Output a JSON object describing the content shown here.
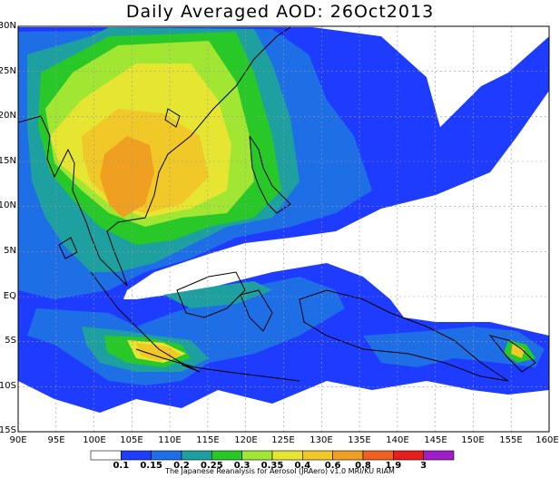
{
  "title": "Daily Averaged AOD: 26Oct2013",
  "map": {
    "lat_labels": [
      "30N",
      "25N",
      "20N",
      "15N",
      "10N",
      "5N",
      "EQ",
      "5S",
      "10S",
      "15S"
    ],
    "lon_labels": [
      "90E",
      "95E",
      "100E",
      "105E",
      "110E",
      "115E",
      "120E",
      "125E",
      "130E",
      "135E",
      "140E",
      "145E",
      "150E",
      "155E",
      "160E"
    ],
    "extent": {
      "lon": [
        90,
        160
      ],
      "lat": [
        -15,
        30
      ]
    }
  },
  "colorbar": {
    "colors": [
      "#ffffff",
      "#1e3cff",
      "#1e6ee6",
      "#1ea0a0",
      "#28c828",
      "#a0e632",
      "#e6e632",
      "#f0c828",
      "#f0a020",
      "#f06020",
      "#e61e1e",
      "#a01ec8"
    ],
    "tick_labels": [
      "0.1",
      "0.15",
      "0.2",
      "0.25",
      "0.3",
      "0.35",
      "0.4",
      "0.6",
      "0.8",
      "1.9",
      "3"
    ]
  },
  "credit": "The Japanese Reanalysis for Aerosol (JRAero) v1.0 MRI/KU RIAM"
}
